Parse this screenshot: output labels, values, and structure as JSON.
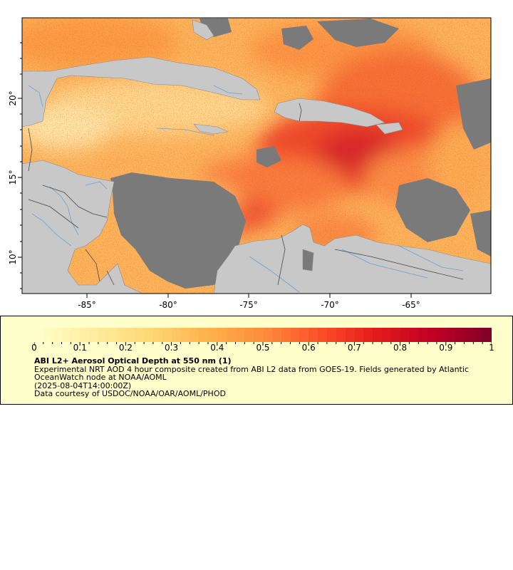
{
  "map": {
    "longitude_ticks": [
      "-85°",
      "-80°",
      "-75°",
      "-70°",
      "-65°"
    ],
    "latitude_ticks": [
      "20°",
      "15°",
      "10°"
    ],
    "colors": {
      "land": "#c8c8c8",
      "no_data": "#7a7a7a",
      "rivers": "#6f9fd0",
      "borders": "#4a4a4a"
    }
  },
  "legend": {
    "colorbar_ticks": [
      "0",
      "0.1",
      "0.2",
      "0.3",
      "0.4",
      "0.5",
      "0.6",
      "0.7",
      "0.8",
      "0.9",
      "1"
    ],
    "colorbar_range": [
      0,
      1
    ],
    "colormap": [
      "#ffffcc",
      "#ffeda0",
      "#fed976",
      "#feb24c",
      "#fd8d3c",
      "#fc4e2a",
      "#e31a1c",
      "#bd0026",
      "#800026"
    ],
    "title": "ABI L2+ Aerosol Optical Depth at 550 nm (1)",
    "description": "Experimental NRT AOD 4 hour composite created from ABI L2 data from GOES-19. Fields generated by Atlantic OceanWatch node at NOAA/AOML",
    "timestamp": "(2025-08-04T14:00:00Z)",
    "credit": "Data courtesy of USDOC/NOAA/OAR/AOML/PHOD"
  }
}
